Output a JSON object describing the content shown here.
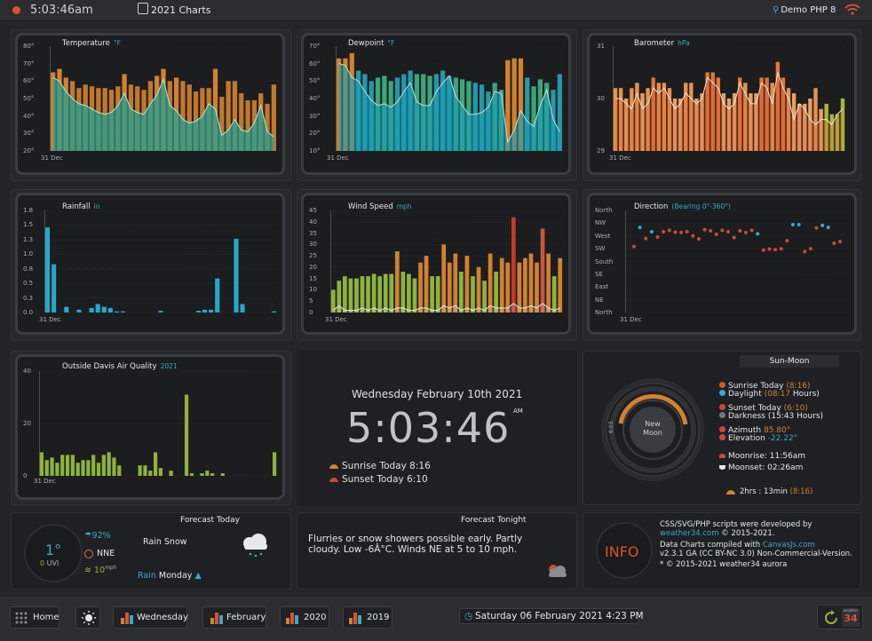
{
  "topbar": {
    "time": "5:03:46am",
    "title": "2021 Charts",
    "station": "Demo PHP 8"
  },
  "charts": {
    "temperature": {
      "title": "Temperature",
      "unit": "°F",
      "yticks": [
        "80°",
        "70°",
        "60°",
        "50°",
        "40°",
        "30°",
        "20°"
      ],
      "xlabel": "31 Dec"
    },
    "dewpoint": {
      "title": "Dewpoint",
      "unit": "°F",
      "yticks": [
        "70°",
        "60°",
        "50°",
        "40°",
        "30°",
        "20°",
        "10°"
      ],
      "xlabel": "31 Dec"
    },
    "barometer": {
      "title": "Barometer",
      "unit": "hPa",
      "yticks": [
        "31",
        "30",
        "29"
      ],
      "xlabel": "31 Dec"
    },
    "rainfall": {
      "title": "Rainfall",
      "unit": "in",
      "yticks": [
        "1.8",
        "1.5",
        "1.3",
        "1.0",
        "0.8",
        "0.5",
        "0.3",
        "0.0"
      ],
      "xlabel": "31 Dec"
    },
    "wind": {
      "title": "Wind Speed",
      "unit": "mph",
      "yticks": [
        "45",
        "40",
        "35",
        "30",
        "25",
        "20",
        "15",
        "10",
        "5",
        "0"
      ],
      "xlabel": "31 Dec"
    },
    "direction": {
      "title": "Direction",
      "unit": "(Bearing 0°-360°)",
      "yticks": [
        "North",
        "NW",
        "West",
        "SW",
        "South",
        "SE",
        "East",
        "NE",
        "North"
      ],
      "xlabel": "31 Dec"
    },
    "airquality": {
      "title": "Outside Davis Air Quality",
      "unit": "2021",
      "yticks": [
        "40",
        "20",
        "0"
      ],
      "xlabel": "31 Dec"
    }
  },
  "chart_data": [
    {
      "type": "bar",
      "title": "Temperature",
      "ylim": [
        20,
        80
      ],
      "values": [
        65,
        67,
        62,
        60,
        56,
        58,
        57,
        56,
        56,
        55,
        57,
        64,
        58,
        57,
        55,
        60,
        63,
        67,
        60,
        62,
        60,
        58,
        54,
        56,
        56,
        67,
        51,
        60,
        60,
        53,
        49,
        49,
        53,
        47,
        58
      ],
      "line": [
        62,
        60,
        54,
        50,
        47,
        46,
        44,
        42,
        41,
        42,
        46,
        53,
        44,
        42,
        41,
        47,
        52,
        61,
        46,
        43,
        38,
        36,
        37,
        40,
        47,
        44,
        29,
        32,
        38,
        32,
        31,
        36,
        46,
        31,
        28
      ]
    },
    {
      "type": "bar",
      "title": "Dewpoint",
      "ylim": [
        10,
        70
      ],
      "values": [
        63,
        63,
        66,
        56,
        54,
        50,
        52,
        53,
        50,
        52,
        54,
        56,
        54,
        54,
        53,
        54,
        56,
        53,
        52,
        51,
        50,
        49,
        48,
        44,
        49,
        45,
        62,
        63,
        63,
        52,
        47,
        51,
        49,
        45,
        54
      ],
      "line": [
        60,
        59,
        52,
        50,
        44,
        39,
        36,
        37,
        35,
        38,
        44,
        49,
        38,
        36,
        36,
        44,
        49,
        53,
        41,
        36,
        31,
        31,
        32,
        35,
        44,
        43,
        15,
        22,
        33,
        27,
        24,
        36,
        45,
        28,
        21
      ]
    },
    {
      "type": "bar",
      "title": "Barometer",
      "ylim": [
        29,
        31
      ],
      "values": [
        30.2,
        30.2,
        30.0,
        30.2,
        30.3,
        30.1,
        30.2,
        30.4,
        30.3,
        30.3,
        30.2,
        30.0,
        30.0,
        30.3,
        30.3,
        30.0,
        30.1,
        30.5,
        30.5,
        30.4,
        30.1,
        30.0,
        30.1,
        30.4,
        30.3,
        30.1,
        30.1,
        30.4,
        30.4,
        30.3,
        30.7,
        30.4,
        30.2,
        30.1,
        29.9,
        29.9,
        30.0,
        30.2,
        29.8,
        29.9,
        29.7,
        29.7,
        30.0
      ],
      "line": [
        30.0,
        30.0,
        29.9,
        29.8,
        30.1,
        29.8,
        29.9,
        30.2,
        30.1,
        30.2,
        30.0,
        29.8,
        29.9,
        30.1,
        30.0,
        29.9,
        30.0,
        30.4,
        30.3,
        30.2,
        29.9,
        29.8,
        29.9,
        30.3,
        30.1,
        29.9,
        29.9,
        30.3,
        30.2,
        29.9,
        30.5,
        30.2,
        30.0,
        29.6,
        29.9,
        29.8,
        29.6,
        29.5,
        29.6,
        29.6,
        29.5,
        29.7,
        29.8
      ]
    },
    {
      "type": "bar",
      "title": "Rainfall",
      "ylim": [
        0,
        1.8
      ],
      "values": [
        1.5,
        0.85,
        0.0,
        0.1,
        0.0,
        0.05,
        0.0,
        0.08,
        0.15,
        0.1,
        0.08,
        0.02,
        0.02,
        0.0,
        0.0,
        0.0,
        0.0,
        0.0,
        0.03,
        0.0,
        0.0,
        0.0,
        0.0,
        0.0,
        0.03,
        0.05,
        0.05,
        0.6,
        0.0,
        0.0,
        1.3,
        0.15,
        0.0,
        0.0,
        0.0,
        0.0,
        0.02
      ]
    },
    {
      "type": "bar",
      "title": "Wind Speed",
      "ylim": [
        0,
        45
      ],
      "values": [
        10,
        14,
        16,
        15,
        15,
        16,
        16,
        17,
        16,
        17,
        17,
        27,
        18,
        17,
        15,
        22,
        25,
        16,
        16,
        30,
        22,
        26,
        18,
        25,
        16,
        20,
        14,
        26,
        18,
        24,
        22,
        42,
        22,
        24,
        26,
        22,
        37,
        26,
        16,
        24
      ],
      "line": [
        1,
        3,
        1,
        1,
        1,
        2,
        1,
        2,
        1,
        2,
        1,
        2,
        2,
        1,
        1,
        2,
        2,
        1,
        1,
        3,
        2,
        3,
        1,
        2,
        1,
        2,
        1,
        3,
        2,
        2,
        2,
        4,
        2,
        2,
        3,
        2,
        4,
        2,
        1,
        2
      ]
    },
    {
      "type": "scatter",
      "title": "Direction",
      "ylim": [
        0,
        360
      ],
      "points": [
        [
          0,
          233
        ],
        [
          1,
          300
        ],
        [
          2,
          261
        ],
        [
          3,
          285
        ],
        [
          4,
          266
        ],
        [
          5,
          285
        ],
        [
          6,
          290
        ],
        [
          7,
          283
        ],
        [
          8,
          282
        ],
        [
          9,
          285
        ],
        [
          10,
          270
        ],
        [
          11,
          260
        ],
        [
          12,
          292
        ],
        [
          13,
          288
        ],
        [
          14,
          276
        ],
        [
          15,
          290
        ],
        [
          16,
          285
        ],
        [
          17,
          264
        ],
        [
          18,
          288
        ],
        [
          19,
          282
        ],
        [
          20,
          290
        ],
        [
          21,
          278
        ],
        [
          22,
          220
        ],
        [
          23,
          224
        ],
        [
          24,
          222
        ],
        [
          25,
          225
        ],
        [
          26,
          253
        ],
        [
          27,
          310
        ],
        [
          28,
          310
        ],
        [
          29,
          215
        ],
        [
          30,
          225
        ],
        [
          31,
          298
        ],
        [
          32,
          307
        ],
        [
          33,
          300
        ],
        [
          34,
          244
        ],
        [
          35,
          250
        ]
      ],
      "daylight": [
        1,
        3,
        21,
        27,
        28,
        32,
        33
      ]
    },
    {
      "type": "bar",
      "title": "Outside Davis Air Quality",
      "ylim": [
        0,
        40
      ],
      "values": [
        9,
        6,
        7,
        5,
        8,
        8,
        8,
        5,
        6,
        6,
        8,
        5,
        8,
        9,
        7,
        4,
        0,
        0,
        0,
        4,
        4,
        2,
        9,
        3,
        0,
        2,
        0,
        0,
        31,
        1,
        0,
        1,
        2,
        1,
        0,
        1,
        0,
        0,
        0,
        0,
        0,
        0,
        0,
        0,
        0,
        9
      ]
    }
  ],
  "clock": {
    "date": "Wednesday February 10th 2021",
    "time": "5:03:46",
    "ampm": "AM",
    "sunrise": "Sunrise Today 8:16",
    "sunset": "Sunset Today 6:10"
  },
  "sunmoon": {
    "title": "Sun-Moon",
    "phase_line1": "New",
    "phase_line2": "Moon",
    "dial_time": "6:03",
    "sunrise_label": "Sunrise Today ",
    "sunrise_time": "(8:16)",
    "daylight_label": "Daylight ",
    "daylight_hours": "(08:17",
    "daylight_suffix": " Hours)",
    "sunset_label": "Sunset Today ",
    "sunset_time": "(6:10)",
    "darkness": "Darkness (15:43 Hours)",
    "azimuth_label": "Azimuth ",
    "azimuth_value": "85.80°",
    "elevation_label": "Elevation ",
    "elevation_value": "-22.22°",
    "moonrise": "Moonrise: 11:56am",
    "moonset": "Moonset: 02:26am",
    "until": "2hrs : 13min ",
    "until_time": "(8:16)"
  },
  "forecast_today": {
    "title": "Forecast Today",
    "uv_value": "1°",
    "uv_label_num": "0",
    "uv_label": " UVI",
    "humidity": "92%",
    "wind_dir": "NNE",
    "wind_speed": "10",
    "wind_unit": "mph",
    "condition": "Rain Snow",
    "day_prefix": "Rain",
    "day": " Monday"
  },
  "forecast_tonight": {
    "title": "Forecast Tonight",
    "text": "Flurries or snow showers possible early. Partly cloudy. Low -6Â°C. Winds NE at 5 to 10 mph."
  },
  "info": {
    "badge": "INFO",
    "line1": "CSS/SVG/PHP scripts were developed by",
    "link1": "weather34.com",
    "line1b": " © 2015-2021.",
    "line2": "Data Charts compiled with ",
    "link2": "CanvasJs.com",
    "line3": "v2.3.1 GA (CC BY-NC 3.0) Non-Commercial-Version.",
    "line4": "* © 2015-2021 weather34 aurora"
  },
  "bottombar": {
    "home": "Home",
    "wednesday": "Wednesday",
    "february": "February",
    "y2020": "2020",
    "y2019": "2019",
    "datetime": "Saturday 06 February 2021 4:23 PM",
    "badge_top": "weather",
    "badge_num": "34"
  },
  "colors": {
    "accent": "#3ba9c6",
    "orange": "#d2812e",
    "green": "#8fb33a",
    "red": "#c94a3b",
    "panel": "#1e2023"
  }
}
